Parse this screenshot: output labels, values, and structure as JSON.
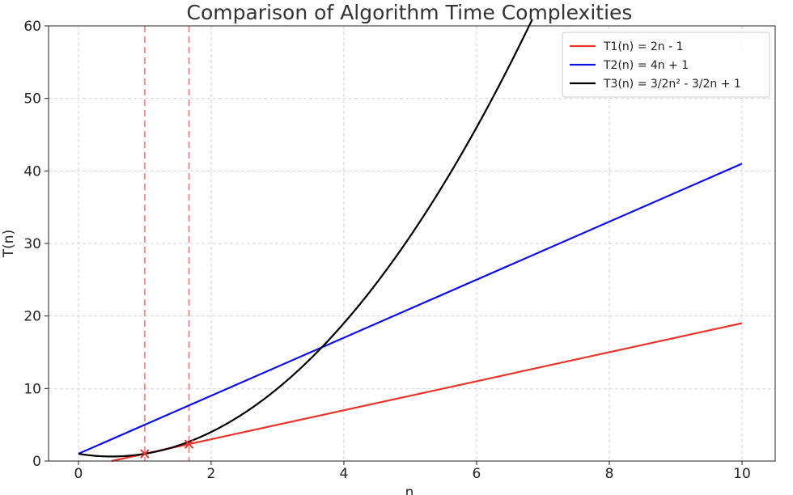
{
  "chart_data": {
    "type": "line",
    "title": "Comparison of Algorithm Time Complexities",
    "xlabel": "n",
    "ylabel": "T(n)",
    "xlim": [
      -0.45,
      10.5
    ],
    "ylim": [
      0,
      60
    ],
    "xticks": [
      "0",
      "2",
      "4",
      "6",
      "8",
      "10"
    ],
    "yticks": [
      "0",
      "10",
      "20",
      "30",
      "40",
      "50",
      "60"
    ],
    "grid": true,
    "legend_position": "top-right",
    "series": [
      {
        "name": "T1(n) = 2n - 1",
        "color": "#e8352b",
        "formula": "2n - 1",
        "x": [
          0.5,
          10
        ],
        "y": [
          0,
          19
        ]
      },
      {
        "name": "T2(n) = 4n + 1",
        "color": "#1010e0",
        "formula": "4n + 1",
        "x": [
          0,
          10
        ],
        "y": [
          1,
          41
        ]
      },
      {
        "name": "T3(n) = 3/2n² - 3/2n + 1",
        "color": "#000000",
        "formula": "1.5n^2 - 1.5n + 1",
        "x": [
          0,
          0.5,
          1,
          1.5,
          2,
          2.5,
          3,
          3.5,
          4,
          4.5,
          5,
          5.5,
          6,
          6.5,
          6.8
        ],
        "y": [
          1,
          0.625,
          1,
          2.125,
          4,
          6.625,
          10,
          14.125,
          19,
          24.625,
          31,
          38.125,
          46,
          54.625,
          60.16
        ]
      }
    ],
    "annotations": {
      "vertical_dashed_lines": [
        {
          "x": 1,
          "color": "#f0908c"
        },
        {
          "x": 1.667,
          "color": "#f0908c"
        }
      ],
      "markers": [
        {
          "x": 1,
          "y": 1,
          "symbol": "x",
          "color": "#e8352b"
        },
        {
          "x": 1.667,
          "y": 2.333,
          "symbol": "x",
          "color": "#e8352b"
        }
      ]
    }
  }
}
